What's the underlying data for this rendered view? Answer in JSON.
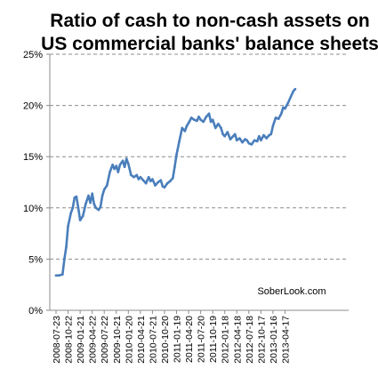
{
  "chart_data": {
    "type": "line",
    "title": "Ratio of cash to non-cash assets on US commercial banks' balance sheets",
    "title_lines": [
      "Ratio of cash to non-cash assets on",
      "US commercial banks' balance sheets"
    ],
    "xlabel": "",
    "ylabel": "",
    "ylim": [
      0,
      0.25
    ],
    "y_ticks": [
      0,
      0.05,
      0.1,
      0.15,
      0.2,
      0.25
    ],
    "y_tick_labels": [
      "0%",
      "5%",
      "10%",
      "15%",
      "20%",
      "25%"
    ],
    "x_tick_labels": [
      "2008-07-23",
      "2008-10-22",
      "2009-01-21",
      "2009-04-22",
      "2009-07-22",
      "2009-10-21",
      "2010-01-20",
      "2010-04-21",
      "2010-07-21",
      "2010-10-20",
      "2011-01-19",
      "2011-04-20",
      "2011-07-20",
      "2011-10-19",
      "2012-01-18",
      "2012-04-18",
      "2012-07-18",
      "2012-10-17",
      "2013-01-16",
      "2013-04-17"
    ],
    "grid": "horizontal dashed",
    "annotation": "SoberLook.com",
    "line_color": "#4a7ebb",
    "series": [
      {
        "name": "",
        "x": [
          "2008-07-23",
          "2008-08-13",
          "2008-09-10",
          "2008-09-24",
          "2008-10-08",
          "2008-10-22",
          "2008-11-12",
          "2008-11-26",
          "2008-12-10",
          "2008-12-24",
          "2009-01-07",
          "2009-01-21",
          "2009-02-11",
          "2009-03-04",
          "2009-03-25",
          "2009-04-08",
          "2009-04-22",
          "2009-05-06",
          "2009-05-20",
          "2009-06-10",
          "2009-06-24",
          "2009-07-08",
          "2009-07-22",
          "2009-08-12",
          "2009-09-02",
          "2009-09-23",
          "2009-10-07",
          "2009-10-21",
          "2009-11-04",
          "2009-11-18",
          "2009-12-09",
          "2009-12-23",
          "2010-01-06",
          "2010-01-20",
          "2010-02-10",
          "2010-03-03",
          "2010-03-24",
          "2010-04-07",
          "2010-04-21",
          "2010-05-12",
          "2010-06-02",
          "2010-06-23",
          "2010-07-07",
          "2010-07-21",
          "2010-08-11",
          "2010-09-01",
          "2010-09-22",
          "2010-10-06",
          "2010-10-20",
          "2010-11-10",
          "2010-12-01",
          "2010-12-22",
          "2011-01-05",
          "2011-01-19",
          "2011-02-09",
          "2011-03-02",
          "2011-03-23",
          "2011-04-06",
          "2011-04-20",
          "2011-05-11",
          "2011-06-01",
          "2011-06-22",
          "2011-07-06",
          "2011-07-20",
          "2011-08-10",
          "2011-08-31",
          "2011-09-21",
          "2011-10-05",
          "2011-10-19",
          "2011-11-09",
          "2011-11-30",
          "2011-12-21",
          "2012-01-04",
          "2012-01-18",
          "2012-02-08",
          "2012-02-29",
          "2012-03-21",
          "2012-04-04",
          "2012-04-18",
          "2012-05-09",
          "2012-05-30",
          "2012-06-20",
          "2012-07-04",
          "2012-07-18",
          "2012-08-08",
          "2012-08-29",
          "2012-09-19",
          "2012-10-03",
          "2012-10-17",
          "2012-11-07",
          "2012-11-28",
          "2012-12-19",
          "2013-01-02",
          "2013-01-16",
          "2013-02-06",
          "2013-02-27",
          "2013-03-20",
          "2013-04-03",
          "2013-04-17",
          "2013-05-08",
          "2013-05-29",
          "2013-06-19",
          "2013-07-03"
        ],
        "values": [
          0.034,
          0.034,
          0.035,
          0.05,
          0.062,
          0.082,
          0.095,
          0.1,
          0.11,
          0.111,
          0.1,
          0.088,
          0.092,
          0.104,
          0.112,
          0.105,
          0.114,
          0.104,
          0.1,
          0.098,
          0.101,
          0.112,
          0.118,
          0.122,
          0.135,
          0.142,
          0.138,
          0.141,
          0.135,
          0.142,
          0.146,
          0.14,
          0.148,
          0.143,
          0.132,
          0.13,
          0.132,
          0.128,
          0.13,
          0.127,
          0.124,
          0.13,
          0.126,
          0.128,
          0.122,
          0.125,
          0.127,
          0.121,
          0.12,
          0.124,
          0.126,
          0.129,
          0.14,
          0.152,
          0.165,
          0.178,
          0.175,
          0.18,
          0.183,
          0.188,
          0.186,
          0.185,
          0.189,
          0.186,
          0.184,
          0.189,
          0.192,
          0.184,
          0.186,
          0.178,
          0.182,
          0.178,
          0.172,
          0.17,
          0.174,
          0.167,
          0.17,
          0.172,
          0.166,
          0.168,
          0.164,
          0.167,
          0.166,
          0.163,
          0.162,
          0.166,
          0.165,
          0.17,
          0.166,
          0.171,
          0.168,
          0.171,
          0.172,
          0.18,
          0.188,
          0.187,
          0.192,
          0.198,
          0.197,
          0.202,
          0.208,
          0.214,
          0.216
        ]
      }
    ]
  }
}
